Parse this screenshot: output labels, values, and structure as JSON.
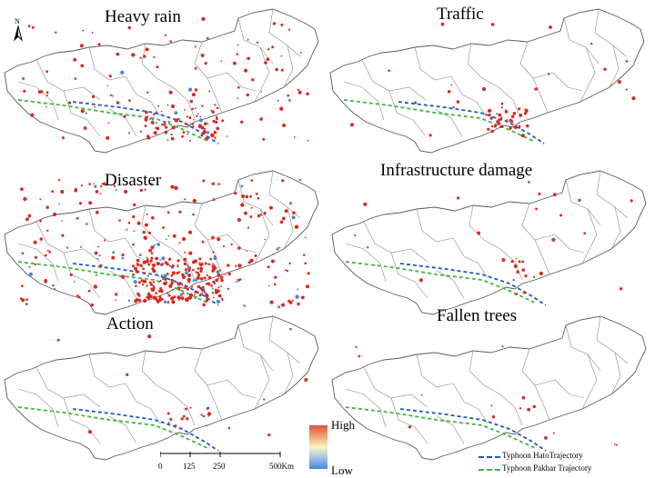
{
  "panels": [
    {
      "title": "Heavy rain",
      "density": "medium"
    },
    {
      "title": "Traffic",
      "density": "low"
    },
    {
      "title": "Disaster",
      "density": "high"
    },
    {
      "title": "Infrastructure damage",
      "density": "cluster"
    },
    {
      "title": "Action",
      "density": "sparse"
    },
    {
      "title": "Fallen trees",
      "density": "cluster"
    }
  ],
  "north_label": "N",
  "legend": {
    "high": "High",
    "low": "Low"
  },
  "scale_bar": {
    "labels": [
      "0",
      "125",
      "250",
      "500Km"
    ]
  },
  "trajectories": [
    {
      "label": "Typhoon HatoTrajectory",
      "color": "#1f57c4"
    },
    {
      "label": "Typhoon Pakhar Trajectory",
      "color": "#3cb83c"
    }
  ],
  "colors": {
    "point": "#d62b1f",
    "hotspot": "#4a86d8",
    "boundary": "#6a6a6a"
  }
}
